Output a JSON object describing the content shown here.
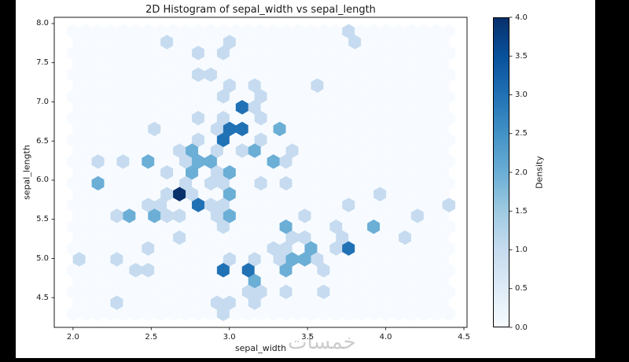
{
  "watermark": "خمسات",
  "page_background": "#000000",
  "figure_background": "#ffffff",
  "chart_data": {
    "type": "hexbin",
    "title": "2D Histogram of sepal_width vs sepal_length",
    "xlabel": "sepal_width",
    "ylabel": "sepal_length",
    "colorbar_label": "Density",
    "colormap_name": "Blues",
    "colormap": [
      "#f7fbff",
      "#deebf7",
      "#c6dbef",
      "#9ecae1",
      "#6baed6",
      "#4292c6",
      "#2171b5",
      "#08519c",
      "#08306b"
    ],
    "xlim": [
      1.88,
      4.52
    ],
    "ylim": [
      4.12,
      8.08
    ],
    "xticks": [
      2.0,
      2.5,
      3.0,
      3.5,
      4.0,
      4.5
    ],
    "yticks": [
      4.5,
      5.0,
      5.5,
      6.0,
      6.5,
      7.0,
      7.5,
      8.0
    ],
    "colorbar_ticks": [
      0.0,
      0.5,
      1.0,
      1.5,
      2.0,
      2.5,
      3.0,
      3.5,
      4.0
    ],
    "density_min": 0,
    "density_max": 4,
    "grid": false,
    "x": [
      3.5,
      3.0,
      3.2,
      3.1,
      3.6,
      3.9,
      3.4,
      3.4,
      2.9,
      3.1,
      3.7,
      3.4,
      3.0,
      3.0,
      4.0,
      4.4,
      3.9,
      3.5,
      3.8,
      3.8,
      3.4,
      3.7,
      3.6,
      3.3,
      3.4,
      3.0,
      3.4,
      3.5,
      3.4,
      3.2,
      3.1,
      3.4,
      4.1,
      4.2,
      3.1,
      3.2,
      3.5,
      3.6,
      3.0,
      3.4,
      3.5,
      2.3,
      3.2,
      3.5,
      3.8,
      3.0,
      3.8,
      3.2,
      3.7,
      3.3,
      3.2,
      3.2,
      3.1,
      2.3,
      2.8,
      2.8,
      3.3,
      2.4,
      2.9,
      2.7,
      2.0,
      3.0,
      2.2,
      2.9,
      2.9,
      3.1,
      3.0,
      2.7,
      2.2,
      2.5,
      3.2,
      2.8,
      2.5,
      2.8,
      2.9,
      3.0,
      2.8,
      3.0,
      2.9,
      2.6,
      2.4,
      2.4,
      2.7,
      2.7,
      3.0,
      3.4,
      3.1,
      2.3,
      3.0,
      2.5,
      2.6,
      3.0,
      2.6,
      2.3,
      2.7,
      3.0,
      2.9,
      2.9,
      2.5,
      2.8,
      3.3,
      2.7,
      3.0,
      2.9,
      3.0,
      3.0,
      2.5,
      2.9,
      2.5,
      3.6,
      3.2,
      2.7,
      3.0,
      2.5,
      2.8,
      3.2,
      3.0,
      3.8,
      2.6,
      2.2,
      3.2,
      2.8,
      2.8,
      2.7,
      3.3,
      3.2,
      2.8,
      3.0,
      2.8,
      3.0,
      2.8,
      3.8,
      2.8,
      2.8,
      2.6,
      3.0,
      3.4,
      3.1,
      3.0,
      3.1,
      3.1,
      3.1,
      2.7,
      3.2,
      3.3,
      3.0,
      2.5,
      3.0,
      3.4,
      3.0
    ],
    "y": [
      5.1,
      4.9,
      4.7,
      4.6,
      5.0,
      5.4,
      4.6,
      5.0,
      4.4,
      4.9,
      5.4,
      4.8,
      4.8,
      4.3,
      5.8,
      5.7,
      5.4,
      5.1,
      5.7,
      5.1,
      5.4,
      5.1,
      4.6,
      5.1,
      4.8,
      5.0,
      5.0,
      5.2,
      5.2,
      4.7,
      4.8,
      5.4,
      5.2,
      5.5,
      4.9,
      5.0,
      5.5,
      4.9,
      4.4,
      5.1,
      5.0,
      4.5,
      4.4,
      5.0,
      5.1,
      4.8,
      5.1,
      4.6,
      5.3,
      5.0,
      7.0,
      6.4,
      6.9,
      5.5,
      6.5,
      5.7,
      6.3,
      4.9,
      6.6,
      5.2,
      5.0,
      5.9,
      6.0,
      6.1,
      5.6,
      6.7,
      5.6,
      5.8,
      6.2,
      5.6,
      5.9,
      6.1,
      6.3,
      6.1,
      6.4,
      6.6,
      6.8,
      6.7,
      6.0,
      5.7,
      5.5,
      5.5,
      5.8,
      6.0,
      5.4,
      6.0,
      6.7,
      6.3,
      5.6,
      5.5,
      5.5,
      6.1,
      5.8,
      5.0,
      5.6,
      5.7,
      5.7,
      6.2,
      5.1,
      5.7,
      6.3,
      5.8,
      7.1,
      6.3,
      6.5,
      7.6,
      4.9,
      7.3,
      6.7,
      7.2,
      6.5,
      6.4,
      6.8,
      5.7,
      5.8,
      6.4,
      6.5,
      7.7,
      7.7,
      6.0,
      6.9,
      5.6,
      7.7,
      6.3,
      6.7,
      7.2,
      6.2,
      6.1,
      6.4,
      7.2,
      7.4,
      7.9,
      6.4,
      6.3,
      6.1,
      7.7,
      6.3,
      6.4,
      6.0,
      6.9,
      6.7,
      6.9,
      5.8,
      6.8,
      6.7,
      6.7,
      6.3,
      6.5,
      6.2,
      5.9
    ]
  }
}
